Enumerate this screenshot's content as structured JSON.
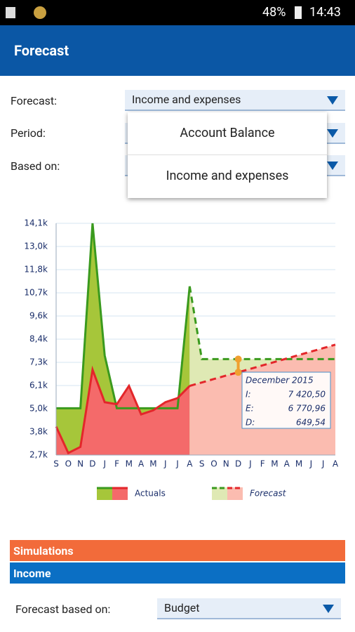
{
  "status_bar": {
    "battery": "48%",
    "time": "14:43"
  },
  "app_bar": {
    "title": "Forecast"
  },
  "form": {
    "rows": [
      {
        "label": "Forecast:",
        "value": "Income and expenses"
      },
      {
        "label": "Period:"
      },
      {
        "label": "Based on:"
      }
    ]
  },
  "menu": {
    "items": [
      "Account Balance",
      "Income and expenses"
    ]
  },
  "chart_data": {
    "type": "area",
    "categories": [
      "S",
      "O",
      "N",
      "D",
      "J",
      "F",
      "M",
      "A",
      "M",
      "J",
      "J",
      "A",
      "S",
      "O",
      "N",
      "D",
      "J",
      "F",
      "M",
      "A",
      "M",
      "J",
      "J",
      "A"
    ],
    "ylim": [
      2700,
      14100
    ],
    "yticks": [
      {
        "value": 2700,
        "label": "2,7k"
      },
      {
        "value": 3840,
        "label": "3,8k"
      },
      {
        "value": 4980,
        "label": "5,0k"
      },
      {
        "value": 6120,
        "label": "6,1k"
      },
      {
        "value": 7260,
        "label": "7,3k"
      },
      {
        "value": 8400,
        "label": "8,4k"
      },
      {
        "value": 9540,
        "label": "9,6k"
      },
      {
        "value": 10680,
        "label": "10,7k"
      },
      {
        "value": 11820,
        "label": "11,8k"
      },
      {
        "value": 12960,
        "label": "13,0k"
      },
      {
        "value": 14100,
        "label": "14,1k"
      }
    ],
    "grid": true,
    "series": [
      {
        "name": "Actuals",
        "income_color": "#3a9a1e",
        "income_fill": "#a6c63a",
        "expenses_color": "#e3262a",
        "expenses_fill": "#f46a6a",
        "dashed": false,
        "income": [
          5000,
          5000,
          5000,
          14100,
          7600,
          5000,
          5000,
          5000,
          5000,
          5000,
          5000,
          11000,
          null,
          null,
          null,
          null,
          null,
          null,
          null,
          null,
          null,
          null,
          null,
          null
        ],
        "expenses": [
          4100,
          2800,
          3100,
          6900,
          5300,
          5200,
          6100,
          4700,
          4900,
          5300,
          5500,
          6100,
          null,
          null,
          null,
          null,
          null,
          null,
          null,
          null,
          null,
          null,
          null,
          null
        ]
      },
      {
        "name": "Forecast",
        "income_color": "#3a9a1e",
        "income_fill": "#dfe9b4",
        "expenses_color": "#e3262a",
        "expenses_fill": "#fbbcb0",
        "dashed": true,
        "income": [
          null,
          null,
          null,
          null,
          null,
          null,
          null,
          null,
          null,
          null,
          null,
          11000,
          7420.5,
          7420.5,
          7420.5,
          7420.5,
          7420.5,
          7420.5,
          7420.5,
          7420.5,
          7420.5,
          7420.5,
          7420.5,
          7420.5
        ],
        "expenses": [
          null,
          null,
          null,
          null,
          null,
          null,
          null,
          null,
          null,
          null,
          null,
          6100,
          6270,
          6440,
          6610,
          6770.96,
          6940,
          7110,
          7280,
          7450,
          7620,
          7790,
          7960,
          8130
        ]
      }
    ],
    "tooltip": {
      "index": 15,
      "title": "December 2015",
      "rows": [
        {
          "label": "I:",
          "value": "7 420,50"
        },
        {
          "label": "E:",
          "value": "6 770,96"
        },
        {
          "label": "D:",
          "value": "649,54"
        }
      ]
    }
  },
  "sections": [
    "Simulations",
    "Income"
  ],
  "footer_row": {
    "label": "Forecast based on:",
    "value": "Budget"
  }
}
